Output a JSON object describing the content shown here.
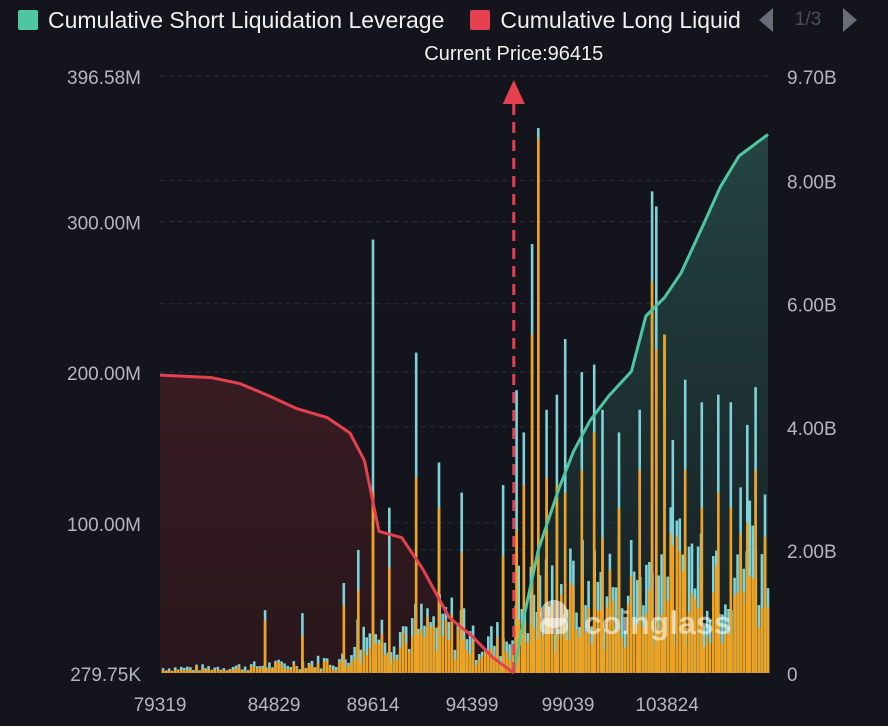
{
  "legend": {
    "items": [
      {
        "label": "Cumulative Short Liquidation Leverage",
        "color": "#4ec6a2"
      },
      {
        "label": "Cumulative Long Liquidation Leverage",
        "color": "#e5404f"
      }
    ],
    "pager": {
      "text": "1/3"
    }
  },
  "annotation": {
    "current_price_label": "Current Price:96415",
    "current_price": 96415
  },
  "watermark": {
    "text": "coinglass"
  },
  "chart_data": {
    "type": "bar",
    "x_range": [
      79319,
      108700
    ],
    "x_ticks": [
      {
        "value": 79319,
        "label": "79319"
      },
      {
        "value": 84829,
        "label": "84829"
      },
      {
        "value": 89614,
        "label": "89614"
      },
      {
        "value": 94399,
        "label": "94399"
      },
      {
        "value": 99039,
        "label": "99039"
      },
      {
        "value": 103824,
        "label": "103824"
      }
    ],
    "y_left": {
      "range": [
        0.28,
        396.58
      ],
      "unit": "M",
      "ticks": [
        {
          "value": 396.58,
          "label": "396.58M"
        },
        {
          "value": 300,
          "label": "300.00M"
        },
        {
          "value": 200,
          "label": "200.00M"
        },
        {
          "value": 100,
          "label": "100.00M"
        },
        {
          "value": 0.28,
          "label": "279.75K"
        }
      ]
    },
    "y_right": {
      "range": [
        0,
        9.7
      ],
      "unit": "B",
      "ticks": [
        {
          "value": 9.7,
          "label": "9.70B"
        },
        {
          "value": 8.0,
          "label": "8.00B"
        },
        {
          "value": 6.0,
          "label": "6.00B"
        },
        {
          "value": 4.0,
          "label": "4.00B"
        },
        {
          "value": 2.0,
          "label": "2.00B"
        },
        {
          "value": 0,
          "label": "0"
        }
      ]
    },
    "grid": true,
    "long_cumulative_B": [
      [
        79319,
        4.84
      ],
      [
        80500,
        4.82
      ],
      [
        81800,
        4.8
      ],
      [
        83200,
        4.7
      ],
      [
        84600,
        4.5
      ],
      [
        85900,
        4.3
      ],
      [
        87400,
        4.15
      ],
      [
        88500,
        3.9
      ],
      [
        89200,
        3.45
      ],
      [
        89900,
        2.3
      ],
      [
        91000,
        2.2
      ],
      [
        92000,
        1.7
      ],
      [
        93300,
        0.9
      ],
      [
        94400,
        0.6
      ],
      [
        95400,
        0.25
      ],
      [
        96415,
        0
      ]
    ],
    "short_cumulative_B": [
      [
        96415,
        0
      ],
      [
        96900,
        0.9
      ],
      [
        97600,
        2.0
      ],
      [
        98600,
        3.0
      ],
      [
        99300,
        3.6
      ],
      [
        100100,
        4.1
      ],
      [
        101000,
        4.5
      ],
      [
        102100,
        4.9
      ],
      [
        102800,
        5.8
      ],
      [
        103700,
        6.1
      ],
      [
        104500,
        6.5
      ],
      [
        105600,
        7.3
      ],
      [
        106400,
        7.9
      ],
      [
        107300,
        8.4
      ],
      [
        108300,
        8.65
      ],
      [
        108700,
        8.75
      ]
    ],
    "bar_spikes_M": [
      [
        84400,
        42,
        35
      ],
      [
        86200,
        40,
        25
      ],
      [
        88200,
        60,
        45
      ],
      [
        88900,
        82,
        55
      ],
      [
        89614,
        288,
        120
      ],
      [
        90400,
        110,
        70
      ],
      [
        91700,
        213,
        130
      ],
      [
        92800,
        140,
        110
      ],
      [
        93900,
        120,
        80
      ],
      [
        95900,
        125,
        78
      ],
      [
        96550,
        188,
        95
      ],
      [
        96900,
        160,
        125
      ],
      [
        97300,
        285,
        225
      ],
      [
        97600,
        362,
        355
      ],
      [
        98000,
        175,
        130
      ],
      [
        98500,
        185,
        125
      ],
      [
        98900,
        222,
        120
      ],
      [
        99700,
        200,
        135
      ],
      [
        100300,
        205,
        160
      ],
      [
        100700,
        175,
        90
      ],
      [
        101500,
        160,
        110
      ],
      [
        102500,
        175,
        135
      ],
      [
        103100,
        320,
        260
      ],
      [
        103300,
        310,
        215
      ],
      [
        103700,
        225,
        225
      ],
      [
        104100,
        155,
        85
      ],
      [
        104700,
        195,
        135
      ],
      [
        105500,
        180,
        110
      ],
      [
        106300,
        185,
        120
      ],
      [
        106900,
        180,
        110
      ],
      [
        107700,
        165,
        100
      ],
      [
        108100,
        190,
        135
      ]
    ]
  }
}
